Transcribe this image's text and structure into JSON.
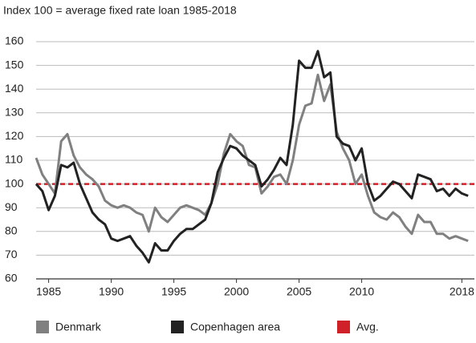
{
  "chart_data": {
    "type": "line",
    "title": "Index 100 = average fixed rate loan 1985-2018",
    "x": [
      1984,
      1984.5,
      1985,
      1985.5,
      1986,
      1986.5,
      1987,
      1987.5,
      1988,
      1988.5,
      1989,
      1989.5,
      1990,
      1990.5,
      1991,
      1991.5,
      1992,
      1992.5,
      1993,
      1993.5,
      1994,
      1994.5,
      1995,
      1995.5,
      1996,
      1996.5,
      1997,
      1997.5,
      1998,
      1998.5,
      1999,
      1999.5,
      2000,
      2000.5,
      2001,
      2001.5,
      2002,
      2002.5,
      2003,
      2003.5,
      2004,
      2004.5,
      2005,
      2005.5,
      2006,
      2006.5,
      2007,
      2007.5,
      2008,
      2008.5,
      2009,
      2009.5,
      2010,
      2010.5,
      2011,
      2011.5,
      2012,
      2012.5,
      2013,
      2013.5,
      2014,
      2014.5,
      2015,
      2015.5,
      2016,
      2016.5,
      2017,
      2017.5,
      2018,
      2018.5
    ],
    "series": [
      {
        "name": "Denmark",
        "color": "#808080",
        "values": [
          111,
          104,
          100,
          96,
          118,
          121,
          112,
          107,
          104,
          102,
          99,
          93,
          91,
          90,
          91,
          90,
          88,
          87,
          80,
          90,
          86,
          84,
          87,
          90,
          91,
          90,
          89,
          87,
          92,
          100,
          113,
          121,
          118,
          116,
          108,
          107,
          96,
          99,
          103,
          104,
          100,
          110,
          125,
          133,
          134,
          146,
          135,
          142,
          122,
          115,
          110,
          100,
          104,
          95,
          88,
          86,
          85,
          88,
          86,
          82,
          79,
          87,
          84,
          84,
          79,
          79,
          77,
          78,
          77,
          76
        ]
      },
      {
        "name": "Copenhagen area",
        "color": "#222222",
        "values": [
          100,
          97,
          89,
          95,
          108,
          107,
          109,
          100,
          94,
          88,
          85,
          83,
          77,
          76,
          77,
          78,
          74,
          71,
          67,
          75,
          72,
          72,
          76,
          79,
          81,
          81,
          83,
          85,
          92,
          105,
          111,
          116,
          115,
          112,
          110,
          108,
          99,
          102,
          106,
          111,
          108,
          125,
          152,
          149,
          149,
          156,
          145,
          147,
          120,
          117,
          116,
          110,
          115,
          100,
          93,
          95,
          98,
          101,
          100,
          97,
          94,
          104,
          103,
          102,
          97,
          98,
          95,
          98,
          96,
          95
        ]
      }
    ],
    "avg": {
      "name": "Avg.",
      "value": 100,
      "color": "#d0202a"
    },
    "xlim": [
      1984,
      2019
    ],
    "xticks": [
      1985,
      1990,
      1995,
      2000,
      2005,
      2010,
      2018
    ],
    "ylim": [
      60,
      160
    ],
    "yticks": [
      60,
      70,
      80,
      90,
      100,
      110,
      120,
      130,
      140,
      150,
      160
    ],
    "grid": true
  }
}
